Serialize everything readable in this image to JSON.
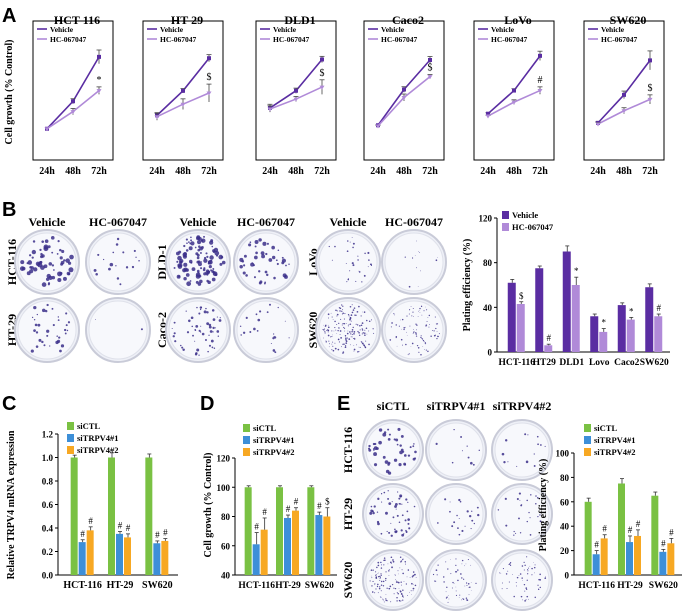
{
  "panels": {
    "A": "A",
    "B": "B",
    "C": "C",
    "D": "D",
    "E": "E"
  },
  "colors": {
    "vehicle": "#5a2da2",
    "hc": "#b08ad8",
    "green": "#7ac143",
    "blue": "#3d8fd8",
    "orange": "#f7a823",
    "dish_rim": "#d9d9e4",
    "colony": "#3b2f8a"
  },
  "panelA": {
    "ylabel": "Cell growth (% Control)",
    "legend": [
      "Vehicle",
      "HC-067047"
    ],
    "xticks": [
      "24h",
      "48h",
      "72h"
    ]
  },
  "chart_data": [
    {
      "type": "line",
      "title": "HCT-116",
      "x": [
        "24h",
        "48h",
        "72h"
      ],
      "ylim": [
        0,
        400
      ],
      "ylabel": "Cell growth (% Control)",
      "series": [
        {
          "name": "Vehicle",
          "values": [
            100,
            188,
            330
          ],
          "err": [
            0,
            8,
            22
          ]
        },
        {
          "name": "HC-067047",
          "values": [
            100,
            155,
            222
          ],
          "err": [
            0,
            10,
            12
          ]
        }
      ],
      "sig": {
        "index": 2,
        "mark": "*"
      }
    },
    {
      "type": "line",
      "title": "HT-29",
      "x": [
        "24h",
        "48h",
        "72h"
      ],
      "ylim": [
        0,
        280
      ],
      "series": [
        {
          "name": "Vehicle",
          "values": [
            100,
            155,
            228
          ],
          "err": [
            6,
            5,
            8
          ]
        },
        {
          "name": "HC-067047",
          "values": [
            97,
            125,
            150
          ],
          "err": [
            8,
            12,
            20
          ]
        }
      ],
      "sig": {
        "index": 2,
        "mark": "$"
      }
    },
    {
      "type": "line",
      "title": "DLD1",
      "x": [
        "24h",
        "48h",
        "72h"
      ],
      "ylim": [
        0,
        240
      ],
      "series": [
        {
          "name": "Vehicle",
          "values": [
            100,
            133,
            193
          ],
          "err": [
            7,
            5,
            6
          ]
        },
        {
          "name": "HC-067047",
          "values": [
            98,
            117,
            140
          ],
          "err": [
            6,
            5,
            14
          ]
        }
      ],
      "sig": {
        "index": 2,
        "mark": "$"
      }
    },
    {
      "type": "line",
      "title": "Caco2",
      "x": [
        "24h",
        "48h",
        "72h"
      ],
      "ylim": [
        0,
        360
      ],
      "series": [
        {
          "name": "Vehicle",
          "values": [
            100,
            203,
            288
          ],
          "err": [
            2,
            8,
            10
          ]
        },
        {
          "name": "HC-067047",
          "values": [
            98,
            180,
            240
          ],
          "err": [
            2,
            10,
            6
          ]
        }
      ],
      "sig": {
        "index": 2,
        "mark": "$"
      }
    },
    {
      "type": "line",
      "title": "LoVo",
      "x": [
        "24h",
        "48h",
        "72h"
      ],
      "ylim": [
        0,
        270
      ],
      "series": [
        {
          "name": "Vehicle",
          "values": [
            100,
            150,
            225
          ],
          "err": [
            2,
            4,
            10
          ]
        },
        {
          "name": "HC-067047",
          "values": [
            95,
            125,
            150
          ],
          "err": [
            2,
            5,
            8
          ]
        }
      ],
      "sig": {
        "index": 2,
        "mark": "#"
      }
    },
    {
      "type": "line",
      "title": "SW620",
      "x": [
        "24h",
        "48h",
        "72h"
      ],
      "ylim": [
        0,
        330
      ],
      "series": [
        {
          "name": "Vehicle",
          "values": [
            98,
            172,
            263
          ],
          "err": [
            4,
            10,
            25
          ]
        },
        {
          "name": "HC-067047",
          "values": [
            95,
            130,
            160
          ],
          "err": [
            4,
            8,
            12
          ]
        }
      ],
      "sig": {
        "index": 2,
        "mark": "$"
      }
    },
    {
      "type": "bar",
      "categories": [
        "HCT-116",
        "HT29",
        "DLD1",
        "Lovo",
        "Caco2",
        "SW620"
      ],
      "ylabel": "Plating efficiency (%)",
      "ylim": [
        0,
        120
      ],
      "yticks": [
        "0",
        "40",
        "80",
        "120"
      ],
      "series": [
        {
          "name": "Vehicle",
          "values": [
            62,
            75,
            90,
            32,
            42,
            58
          ],
          "err": [
            3,
            2,
            5,
            2,
            2,
            3
          ]
        },
        {
          "name": "HC-067047",
          "values": [
            43,
            6,
            60,
            18,
            29,
            32
          ],
          "err": [
            2,
            1,
            7,
            3,
            2,
            2
          ]
        }
      ],
      "sig": [
        "$",
        "#",
        "*",
        "*",
        "*",
        "#"
      ]
    },
    {
      "type": "bar",
      "categories": [
        "HCT-116",
        "HT-29",
        "SW620"
      ],
      "ylabel": "Relative TRPV4 mRNA expression",
      "ylim": [
        0,
        1.2
      ],
      "yticks": [
        "0.0",
        "0.2",
        "0.4",
        "0.6",
        "0.8",
        "1.0",
        "1.2"
      ],
      "series": [
        {
          "name": "siCTL",
          "values": [
            1.0,
            1.0,
            1.0
          ],
          "err": [
            0.02,
            0.04,
            0.03
          ]
        },
        {
          "name": "siTRPV4#1",
          "values": [
            0.28,
            0.35,
            0.27
          ],
          "err": [
            0.02,
            0.02,
            0.02
          ]
        },
        {
          "name": "siTRPV4#2",
          "values": [
            0.38,
            0.32,
            0.29
          ],
          "err": [
            0.03,
            0.03,
            0.02
          ]
        }
      ],
      "sig": [
        "#",
        "#",
        "#"
      ]
    },
    {
      "type": "bar",
      "categories": [
        "HCT-116",
        "HT-29",
        "SW620"
      ],
      "ylabel": "Cell growth (% Control)",
      "ylim": [
        40,
        120
      ],
      "yticks": [
        "40",
        "60",
        "80",
        "100",
        "120"
      ],
      "series": [
        {
          "name": "siCTL",
          "values": [
            100,
            100,
            100
          ],
          "err": [
            1,
            1,
            1
          ]
        },
        {
          "name": "siTRPV4#1",
          "values": [
            61,
            79,
            81
          ],
          "err": [
            8,
            2,
            2
          ]
        },
        {
          "name": "siTRPV4#2",
          "values": [
            71,
            84,
            80
          ],
          "err": [
            8,
            2,
            6
          ]
        }
      ],
      "sig": [
        [
          "#",
          "#"
        ],
        [
          "#",
          "#"
        ],
        [
          "#",
          "$"
        ]
      ]
    },
    {
      "type": "bar",
      "categories": [
        "HCT-116",
        "HT-29",
        "SW620"
      ],
      "ylabel": "Plating efficiency (%)",
      "ylim": [
        0,
        100
      ],
      "yticks": [
        "0",
        "20",
        "40",
        "60",
        "80",
        "100"
      ],
      "series": [
        {
          "name": "siCTL",
          "values": [
            60,
            75,
            65
          ],
          "err": [
            3,
            4,
            3
          ]
        },
        {
          "name": "siTRPV4#1",
          "values": [
            17,
            27,
            19
          ],
          "err": [
            3,
            5,
            2
          ]
        },
        {
          "name": "siTRPV4#2",
          "values": [
            30,
            32,
            26
          ],
          "err": [
            3,
            5,
            4
          ]
        }
      ],
      "sig": [
        "#",
        "#",
        "#"
      ]
    }
  ],
  "panelB": {
    "group1": {
      "cols": [
        "Vehicle",
        "HC-067047"
      ],
      "rows": [
        "HCT-116",
        "HT-29"
      ]
    },
    "group2": {
      "rows": [
        "DLD-1",
        "Caco-2"
      ]
    },
    "group3": {
      "cols": [
        "Vehicle",
        "HC-067047"
      ],
      "rows": [
        "LoVo",
        "SW620"
      ]
    }
  },
  "panelE": {
    "cols": [
      "siCTL",
      "siTRPV4#1",
      "siTRPV4#2"
    ],
    "rows": [
      "HCT-116",
      "HT-29",
      "SW620"
    ]
  }
}
